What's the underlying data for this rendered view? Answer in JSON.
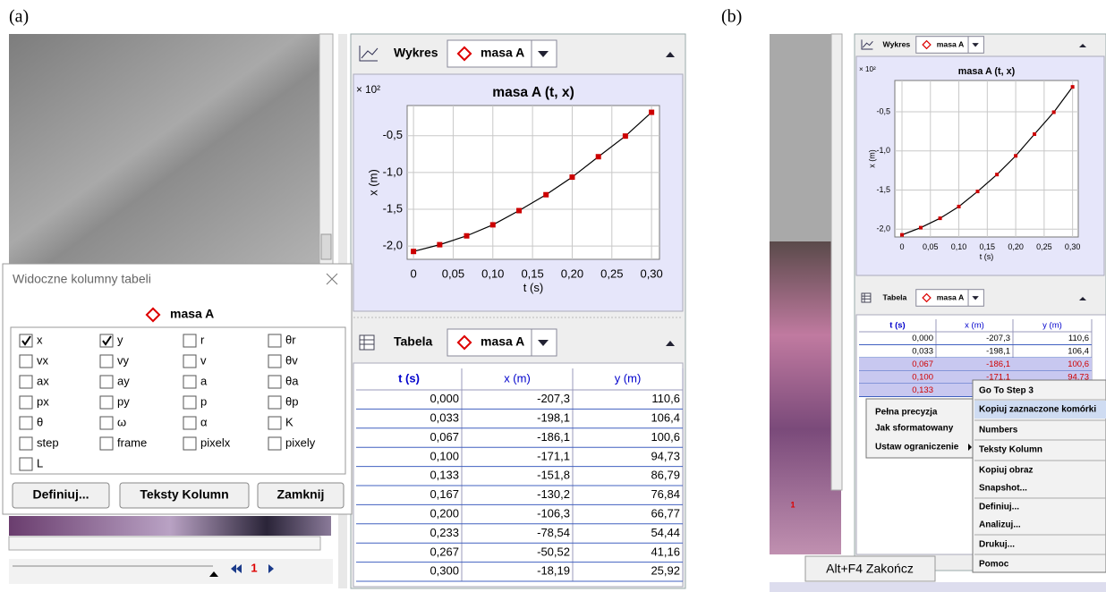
{
  "panel_labels": [
    "(a)",
    "(b)"
  ],
  "panel_a": {
    "wykres_header": {
      "title": "Wykres",
      "object": "masa A"
    },
    "tabela_header": {
      "title": "Tabela",
      "object": "masa A"
    },
    "table": {
      "columns": [
        "t (s)",
        "x (m)",
        "y (m)"
      ],
      "rows": [
        [
          "0,000",
          "-207,3",
          "110,6"
        ],
        [
          "0,033",
          "-198,1",
          "106,4"
        ],
        [
          "0,067",
          "-186,1",
          "100,6"
        ],
        [
          "0,100",
          "-171,1",
          "94,73"
        ],
        [
          "0,133",
          "-151,8",
          "86,79"
        ],
        [
          "0,167",
          "-130,2",
          "76,84"
        ],
        [
          "0,200",
          "-106,3",
          "66,77"
        ],
        [
          "0,233",
          "-78,54",
          "54,44"
        ],
        [
          "0,267",
          "-50,52",
          "41,16"
        ],
        [
          "0,300",
          "-18,19",
          "25,92"
        ]
      ],
      "selected_rows": []
    },
    "dialog": {
      "title": "Widoczne kolumny tabeli",
      "object": "masa A",
      "checkboxes": [
        {
          "label": "x",
          "checked": true
        },
        {
          "label": "y",
          "checked": true
        },
        {
          "label": "r",
          "checked": false
        },
        {
          "label": "θr",
          "checked": false
        },
        {
          "label": "vx",
          "checked": false
        },
        {
          "label": "vy",
          "checked": false
        },
        {
          "label": "v",
          "checked": false
        },
        {
          "label": "θv",
          "checked": false
        },
        {
          "label": "ax",
          "checked": false
        },
        {
          "label": "ay",
          "checked": false
        },
        {
          "label": "a",
          "checked": false
        },
        {
          "label": "θa",
          "checked": false
        },
        {
          "label": "px",
          "checked": false
        },
        {
          "label": "py",
          "checked": false
        },
        {
          "label": "p",
          "checked": false
        },
        {
          "label": "θp",
          "checked": false
        },
        {
          "label": "θ",
          "checked": false
        },
        {
          "label": "ω",
          "checked": false
        },
        {
          "label": "α",
          "checked": false
        },
        {
          "label": "K",
          "checked": false
        },
        {
          "label": "step",
          "checked": false
        },
        {
          "label": "frame",
          "checked": false
        },
        {
          "label": "pixelx",
          "checked": false
        },
        {
          "label": "pixely",
          "checked": false
        },
        {
          "label": "L",
          "checked": false
        }
      ],
      "buttons": [
        "Definiuj...",
        "Teksty Kolumn",
        "Zamknij"
      ]
    },
    "frame_number": "1"
  },
  "panel_b": {
    "wykres_header": {
      "title": "Wykres",
      "object": "masa A"
    },
    "tabela_header": {
      "title": "Tabela",
      "object": "masa A"
    },
    "table": {
      "columns": [
        "t (s)",
        "x (m)",
        "y (m)"
      ],
      "rows": [
        [
          "0,000",
          "-207,3",
          "110,6"
        ],
        [
          "0,033",
          "-198,1",
          "106,4"
        ],
        [
          "0,067",
          "-186,1",
          "100,6"
        ],
        [
          "0,100",
          "-171,1",
          "94,73"
        ],
        [
          "0,133",
          "",
          ""
        ]
      ],
      "selected_rows": [
        2,
        3,
        4
      ]
    },
    "menu_format": [
      "Pełna precyzja",
      "Jak sformatowany",
      "Ustaw ograniczenie"
    ],
    "menu_main": [
      "Go To Step 3",
      "Kopiuj zaznaczone komórki",
      "Numbers",
      "Teksty Kolumn",
      "Kopiuj obraz",
      "Snapshot...",
      "Definiuj...",
      "Analizuj...",
      "Drukuj...",
      "Pomoc"
    ],
    "menu_main_highlighted": 1,
    "footer": "Alt+F4 Zakończ",
    "frame_number": "1"
  },
  "chart_data": [
    {
      "type": "line",
      "title": "masa A (t, x)",
      "multiplier": "× 10²",
      "x_label": "t (s)",
      "y_label": "x (m)",
      "x": [
        0,
        0.033,
        0.067,
        0.1,
        0.133,
        0.167,
        0.2,
        0.233,
        0.267,
        0.3
      ],
      "series": [
        {
          "color": "#cc0000",
          "line_color": "#000000",
          "values": [
            -2.073,
            -1.981,
            -1.861,
            -1.711,
            -1.518,
            -1.302,
            -1.063,
            -0.7854,
            -0.5052,
            -0.1819
          ]
        }
      ],
      "xlim": [
        -0.008,
        0.31
      ],
      "ylim": [
        -2.18,
        -0.09
      ],
      "xticks": [
        0,
        {
          "value": 0.05,
          "label": "0,05"
        },
        {
          "value": 0.1,
          "label": "0,10"
        },
        {
          "value": 0.15,
          "label": "0,15"
        },
        {
          "value": 0.2,
          "label": "0,20"
        },
        {
          "value": 0.25,
          "label": "0,25"
        },
        {
          "value": 0.3,
          "label": "0,30"
        }
      ],
      "yticks": [
        {
          "value": -2.0,
          "label": "-2,0"
        },
        {
          "value": -1.5,
          "label": "-1,5"
        },
        {
          "value": -1.0,
          "label": "-1,0"
        },
        {
          "value": -0.5,
          "label": "-0,5"
        }
      ],
      "grid": true
    },
    {
      "type": "line",
      "title": "masa A (t, x)",
      "multiplier": "× 10²",
      "x_label": "t (s)",
      "y_label": "x (m)",
      "x": [
        0,
        0.033,
        0.067,
        0.1,
        0.133,
        0.167,
        0.2,
        0.233,
        0.267,
        0.3
      ],
      "series": [
        {
          "color": "#cc0000",
          "line_color": "#000000",
          "values": [
            -2.073,
            -1.981,
            -1.861,
            -1.711,
            -1.518,
            -1.302,
            -1.063,
            -0.7854,
            -0.5052,
            -0.1819
          ]
        }
      ],
      "xlim": [
        -0.0126,
        0.31
      ],
      "ylim": [
        -2.1,
        -0.1
      ],
      "xticks": [
        0,
        {
          "value": 0.05,
          "label": "0,05"
        },
        {
          "value": 0.1,
          "label": "0,10"
        },
        {
          "value": 0.15,
          "label": "0,15"
        },
        {
          "value": 0.2,
          "label": "0,20"
        },
        {
          "value": 0.25,
          "label": "0,25"
        },
        {
          "value": 0.3,
          "label": "0,30"
        }
      ],
      "yticks": [
        {
          "value": -2.0,
          "label": "-2,0"
        },
        {
          "value": -1.5,
          "label": "-1,5"
        },
        {
          "value": -1.0,
          "label": "-1,0"
        },
        {
          "value": -0.5,
          "label": "-0,5"
        }
      ],
      "grid": true
    }
  ]
}
